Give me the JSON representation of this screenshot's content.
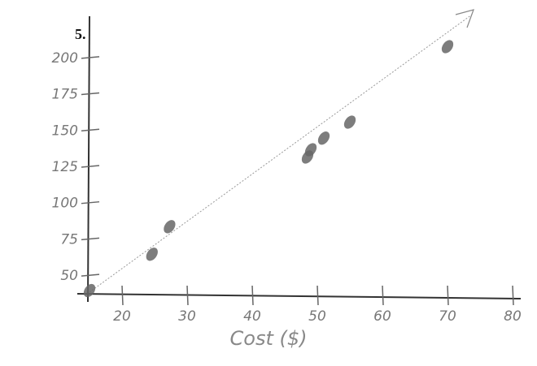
{
  "chart_data": {
    "type": "scatter",
    "title": "5.",
    "x_label": "Cost ($)",
    "x": [
      15,
      24.6,
      27.3,
      48.5,
      49,
      51,
      55,
      70
    ],
    "values": [
      40,
      65,
      84,
      132,
      137,
      145,
      156,
      208
    ],
    "color": "#666666",
    "xlim": [
      15,
      80
    ],
    "ylim": [
      40,
      215
    ],
    "xticks": [
      20,
      30,
      40,
      50,
      60,
      70,
      80
    ],
    "yticks": [
      50,
      75,
      100,
      125,
      150,
      175,
      200
    ]
  }
}
